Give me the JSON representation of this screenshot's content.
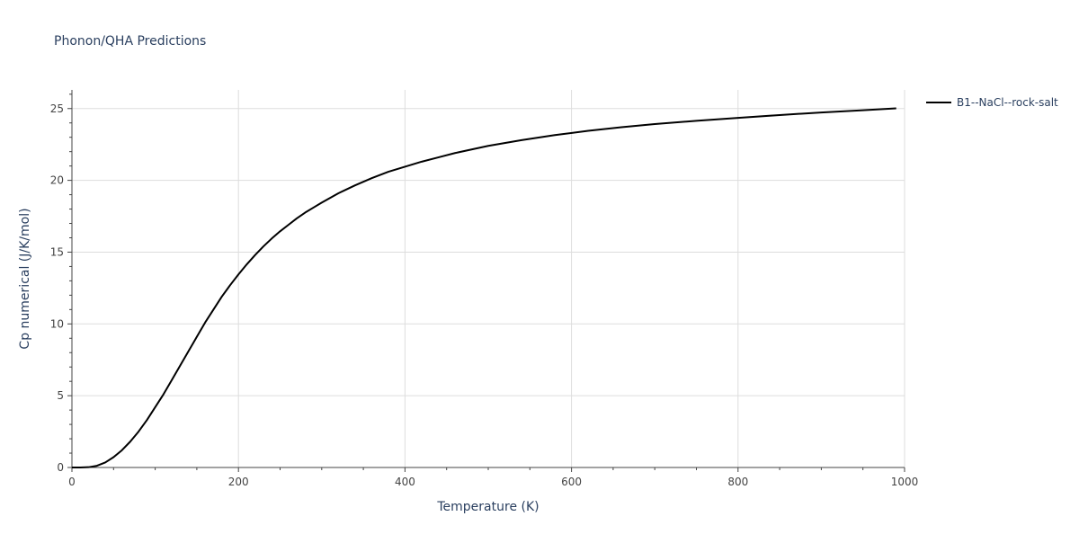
{
  "chart_data": {
    "type": "line",
    "title": "Phonon/QHA Predictions",
    "xlabel": "Temperature (K)",
    "ylabel": "Cp numerical (J/K/mol)",
    "xlim": [
      0,
      1000
    ],
    "ylim": [
      0,
      26.3
    ],
    "xticks": [
      0,
      200,
      400,
      600,
      800,
      1000
    ],
    "yticks": [
      0,
      5,
      10,
      15,
      20,
      25
    ],
    "grid": true,
    "legend_position": "top-right outside",
    "series": [
      {
        "name": "B1--NaCl--rock-salt",
        "color": "#000000",
        "x": [
          0,
          10,
          20,
          30,
          40,
          50,
          60,
          70,
          80,
          90,
          100,
          110,
          120,
          130,
          140,
          150,
          160,
          170,
          180,
          190,
          200,
          210,
          220,
          230,
          240,
          250,
          260,
          270,
          280,
          290,
          300,
          320,
          340,
          360,
          380,
          400,
          420,
          440,
          460,
          480,
          500,
          540,
          580,
          620,
          660,
          700,
          750,
          800,
          850,
          900,
          950,
          990
        ],
        "y": [
          0.0,
          0.0,
          0.02,
          0.12,
          0.35,
          0.72,
          1.2,
          1.8,
          2.5,
          3.3,
          4.2,
          5.1,
          6.1,
          7.1,
          8.1,
          9.1,
          10.1,
          11.0,
          11.9,
          12.7,
          13.45,
          14.15,
          14.8,
          15.4,
          15.95,
          16.45,
          16.9,
          17.35,
          17.75,
          18.1,
          18.45,
          19.1,
          19.65,
          20.15,
          20.6,
          20.95,
          21.3,
          21.6,
          21.9,
          22.15,
          22.4,
          22.8,
          23.15,
          23.45,
          23.7,
          23.92,
          24.15,
          24.35,
          24.55,
          24.73,
          24.88,
          25.02
        ]
      }
    ]
  }
}
